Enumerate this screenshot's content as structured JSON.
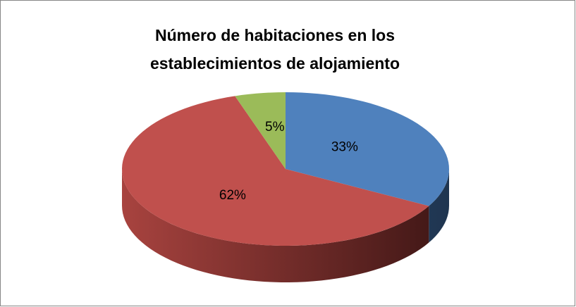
{
  "chart_data": {
    "type": "pie",
    "title": "Número de habitaciones en los establecimientos de alojamiento",
    "categories": [
      null,
      null,
      null
    ],
    "values": [
      33,
      62,
      5
    ],
    "value_labels": [
      "33%",
      "62%",
      "5%"
    ],
    "colors": [
      "#4f81bd",
      "#c0504d",
      "#9bbb59"
    ]
  }
}
